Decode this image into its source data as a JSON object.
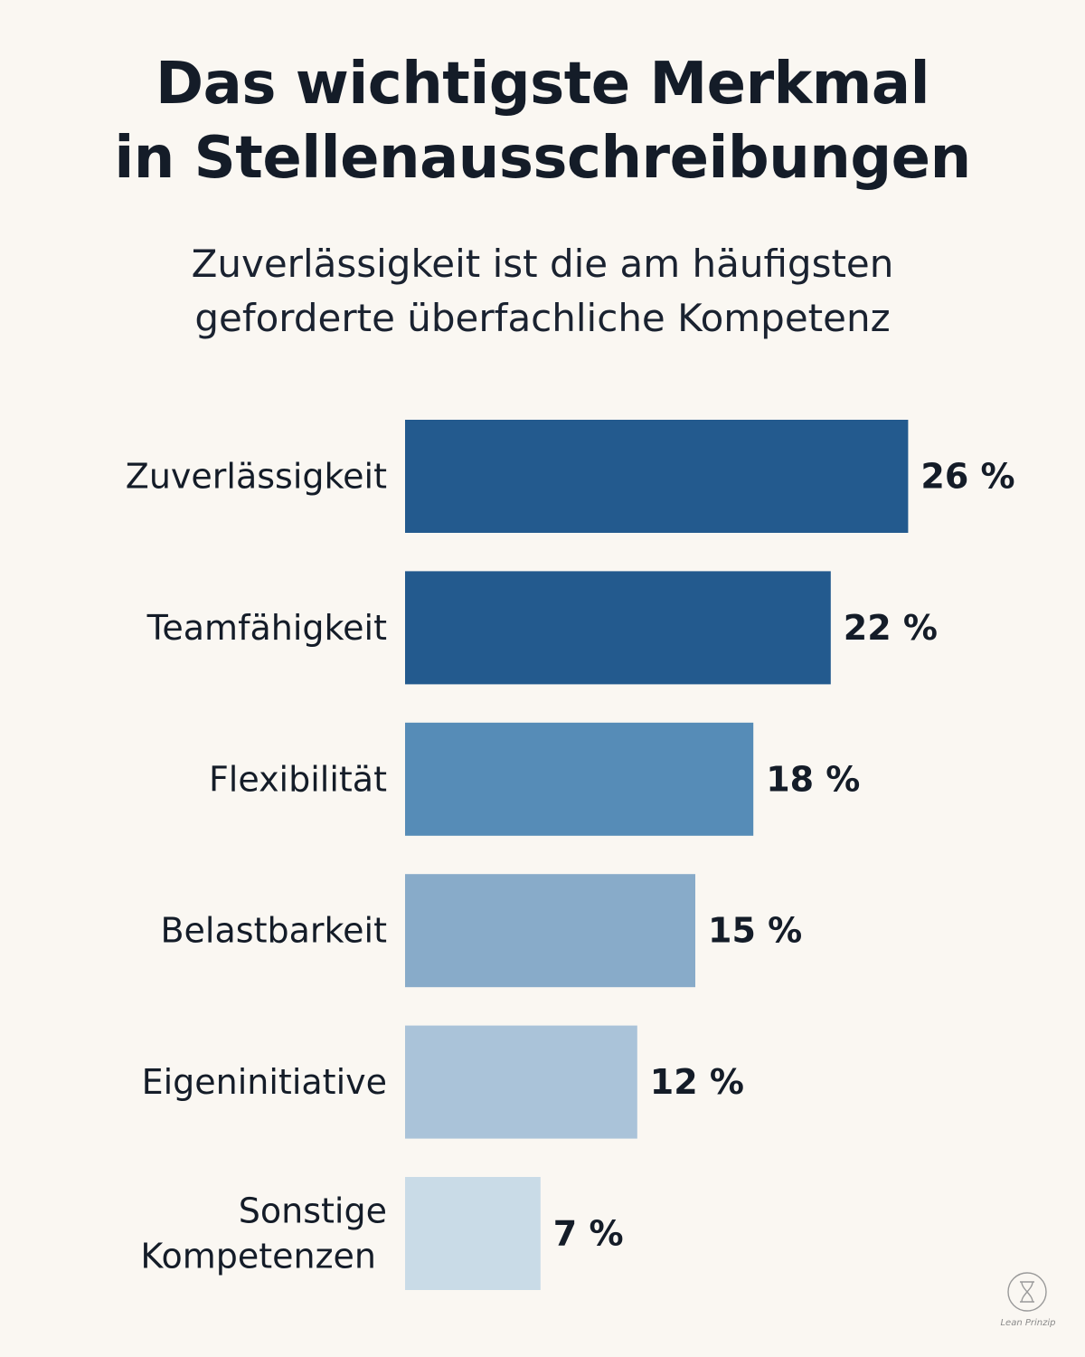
{
  "title_lines": [
    "Das wichtigste Merkmal",
    "in Stellenausschreibungen"
  ],
  "subtitle_lines": [
    "Zuverlässigkeit ist die am häufigsten",
    "geforderte überfachliche Kompetenz"
  ],
  "brand": "Lean Prinzip",
  "chart_data": {
    "type": "bar",
    "orientation": "horizontal",
    "title": "Das wichtigste Merkmal in Stellenausschreibungen",
    "subtitle": "Zuverlässigkeit ist die am häufigsten geforderte überfachliche Kompetenz",
    "xlabel": "",
    "ylabel": "",
    "unit": "%",
    "grid": false,
    "categories": [
      [
        "Zuverlässigkeit"
      ],
      [
        "Teamfähigkeit"
      ],
      [
        "Flexibilität"
      ],
      [
        "Belastbarkeit"
      ],
      [
        "Eigeninitiative"
      ],
      [
        "Sonstige",
        "Kompetenzen"
      ]
    ],
    "values": [
      26,
      22,
      18,
      15,
      12,
      7
    ],
    "value_labels": [
      "26 %",
      "22 %",
      "18 %",
      "15 %",
      "12 %",
      "7 %"
    ],
    "colors": [
      "#235a8e",
      "#235a8e",
      "#568cb7",
      "#88abc9",
      "#aac3d9",
      "#c9dbe7"
    ]
  }
}
